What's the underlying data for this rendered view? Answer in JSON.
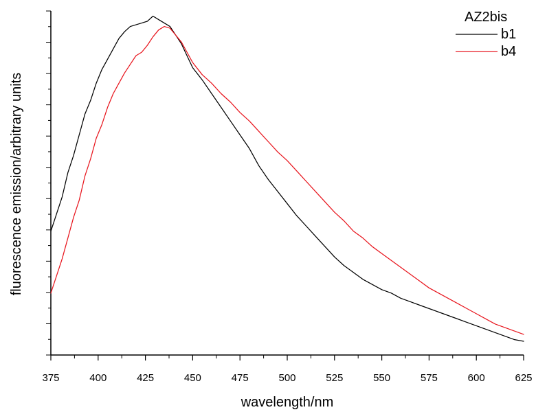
{
  "chart_data": {
    "type": "line",
    "title": "",
    "xlabel": "wavelength/nm",
    "ylabel": "fluorescence emission/arbitrary units",
    "xlim": [
      375,
      625
    ],
    "ylim": [
      0,
      1
    ],
    "x_ticks": [
      "375",
      "400",
      "425",
      "450",
      "475",
      "500",
      "525",
      "550",
      "575",
      "600",
      "625"
    ],
    "y_tick_labels_shown": false,
    "grid": false,
    "legend": {
      "title": "AZ2bis",
      "position": "top-right"
    },
    "series": [
      {
        "name": "b1",
        "color": "#000000",
        "points": [
          [
            375,
            0.36
          ],
          [
            378,
            0.41
          ],
          [
            381,
            0.46
          ],
          [
            384,
            0.53
          ],
          [
            387,
            0.58
          ],
          [
            390,
            0.64
          ],
          [
            393,
            0.7
          ],
          [
            396,
            0.74
          ],
          [
            399,
            0.79
          ],
          [
            402,
            0.83
          ],
          [
            405,
            0.86
          ],
          [
            408,
            0.89
          ],
          [
            411,
            0.92
          ],
          [
            414,
            0.94
          ],
          [
            417,
            0.955
          ],
          [
            420,
            0.96
          ],
          [
            423,
            0.965
          ],
          [
            426,
            0.97
          ],
          [
            429,
            0.985
          ],
          [
            432,
            0.975
          ],
          [
            435,
            0.965
          ],
          [
            438,
            0.955
          ],
          [
            441,
            0.93
          ],
          [
            444,
            0.905
          ],
          [
            447,
            0.87
          ],
          [
            450,
            0.835
          ],
          [
            455,
            0.8
          ],
          [
            460,
            0.76
          ],
          [
            465,
            0.72
          ],
          [
            470,
            0.68
          ],
          [
            475,
            0.64
          ],
          [
            480,
            0.6
          ],
          [
            485,
            0.55
          ],
          [
            490,
            0.51
          ],
          [
            495,
            0.475
          ],
          [
            500,
            0.44
          ],
          [
            505,
            0.405
          ],
          [
            510,
            0.375
          ],
          [
            515,
            0.345
          ],
          [
            520,
            0.315
          ],
          [
            525,
            0.285
          ],
          [
            530,
            0.26
          ],
          [
            535,
            0.24
          ],
          [
            540,
            0.22
          ],
          [
            545,
            0.205
          ],
          [
            550,
            0.19
          ],
          [
            555,
            0.18
          ],
          [
            560,
            0.165
          ],
          [
            565,
            0.155
          ],
          [
            570,
            0.145
          ],
          [
            575,
            0.135
          ],
          [
            580,
            0.125
          ],
          [
            585,
            0.115
          ],
          [
            590,
            0.105
          ],
          [
            595,
            0.095
          ],
          [
            600,
            0.085
          ],
          [
            605,
            0.075
          ],
          [
            610,
            0.065
          ],
          [
            615,
            0.055
          ],
          [
            620,
            0.045
          ],
          [
            625,
            0.04
          ]
        ]
      },
      {
        "name": "b4",
        "color": "#e8151d",
        "points": [
          [
            375,
            0.18
          ],
          [
            378,
            0.23
          ],
          [
            381,
            0.28
          ],
          [
            384,
            0.34
          ],
          [
            387,
            0.4
          ],
          [
            390,
            0.45
          ],
          [
            393,
            0.52
          ],
          [
            396,
            0.57
          ],
          [
            399,
            0.63
          ],
          [
            402,
            0.67
          ],
          [
            405,
            0.72
          ],
          [
            408,
            0.76
          ],
          [
            411,
            0.79
          ],
          [
            414,
            0.82
          ],
          [
            417,
            0.845
          ],
          [
            420,
            0.87
          ],
          [
            423,
            0.88
          ],
          [
            426,
            0.9
          ],
          [
            429,
            0.925
          ],
          [
            432,
            0.945
          ],
          [
            435,
            0.955
          ],
          [
            438,
            0.95
          ],
          [
            441,
            0.93
          ],
          [
            444,
            0.91
          ],
          [
            447,
            0.88
          ],
          [
            450,
            0.85
          ],
          [
            455,
            0.815
          ],
          [
            460,
            0.79
          ],
          [
            465,
            0.76
          ],
          [
            470,
            0.735
          ],
          [
            475,
            0.705
          ],
          [
            480,
            0.68
          ],
          [
            485,
            0.65
          ],
          [
            490,
            0.62
          ],
          [
            495,
            0.59
          ],
          [
            500,
            0.565
          ],
          [
            505,
            0.535
          ],
          [
            510,
            0.505
          ],
          [
            515,
            0.475
          ],
          [
            520,
            0.445
          ],
          [
            525,
            0.415
          ],
          [
            530,
            0.39
          ],
          [
            535,
            0.36
          ],
          [
            540,
            0.34
          ],
          [
            545,
            0.315
          ],
          [
            550,
            0.295
          ],
          [
            555,
            0.275
          ],
          [
            560,
            0.255
          ],
          [
            565,
            0.235
          ],
          [
            570,
            0.215
          ],
          [
            575,
            0.195
          ],
          [
            580,
            0.18
          ],
          [
            585,
            0.165
          ],
          [
            590,
            0.15
          ],
          [
            595,
            0.135
          ],
          [
            600,
            0.12
          ],
          [
            605,
            0.105
          ],
          [
            610,
            0.09
          ],
          [
            615,
            0.08
          ],
          [
            620,
            0.07
          ],
          [
            625,
            0.06
          ]
        ]
      }
    ]
  }
}
